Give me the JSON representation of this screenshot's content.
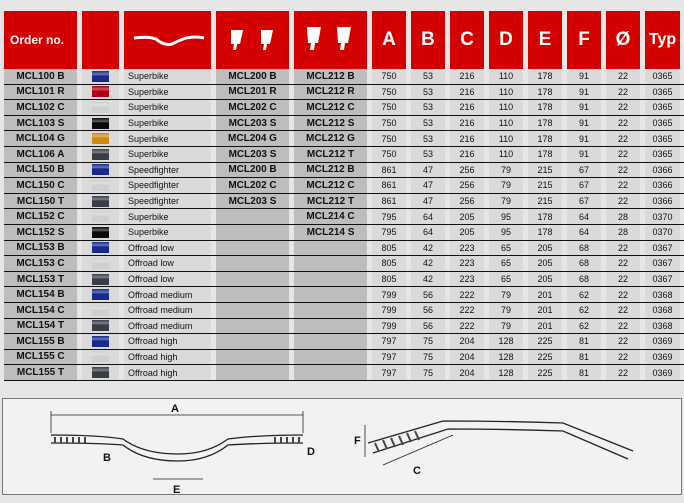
{
  "headers": {
    "order": "Order no.",
    "cols": [
      "A",
      "B",
      "C",
      "D",
      "E",
      "F",
      "Ø",
      "Typ"
    ]
  },
  "colors": {
    "blue": "#1a2a8c",
    "red": "#b00010",
    "silver": "#cfcfcf",
    "black": "#0a0a0a",
    "gold": "#d08a10",
    "titanium": "#3a3d48",
    "header": "#d40000"
  },
  "rows": [
    [
      "MCL100 B",
      "blue",
      "Superbike",
      "MCL200 B",
      "MCL212 B",
      "750",
      "53",
      "216",
      "110",
      "178",
      "91",
      "22",
      "0365"
    ],
    [
      "MCL101 R",
      "red",
      "Superbike",
      "MCL201 R",
      "MCL212 R",
      "750",
      "53",
      "216",
      "110",
      "178",
      "91",
      "22",
      "0365"
    ],
    [
      "MCL102 C",
      "silver",
      "Superbike",
      "MCL202 C",
      "MCL212 C",
      "750",
      "53",
      "216",
      "110",
      "178",
      "91",
      "22",
      "0365"
    ],
    [
      "MCL103 S",
      "black",
      "Superbike",
      "MCL203 S",
      "MCL212 S",
      "750",
      "53",
      "216",
      "110",
      "178",
      "91",
      "22",
      "0365"
    ],
    [
      "MCL104 G",
      "gold",
      "Superbike",
      "MCL204 G",
      "MCL212 G",
      "750",
      "53",
      "216",
      "110",
      "178",
      "91",
      "22",
      "0365"
    ],
    [
      "MCL106 A",
      "titanium",
      "Superbike",
      "MCL203 S",
      "MCL212 T",
      "750",
      "53",
      "216",
      "110",
      "178",
      "91",
      "22",
      "0365"
    ],
    [
      "MCL150 B",
      "blue",
      "Speedfighter",
      "MCL200 B",
      "MCL212 B",
      "861",
      "47",
      "256",
      "79",
      "215",
      "67",
      "22",
      "0366"
    ],
    [
      "MCL150 C",
      "silver",
      "Speedfighter",
      "MCL202 C",
      "MCL212 C",
      "861",
      "47",
      "256",
      "79",
      "215",
      "67",
      "22",
      "0366"
    ],
    [
      "MCL150 T",
      "titanium",
      "Speedfighter",
      "MCL203 S",
      "MCL212 T",
      "861",
      "47",
      "256",
      "79",
      "215",
      "67",
      "22",
      "0366"
    ],
    [
      "MCL152 C",
      "silver",
      "Superbike",
      "",
      "MCL214 C",
      "795",
      "64",
      "205",
      "95",
      "178",
      "64",
      "28",
      "0370"
    ],
    [
      "MCL152 S",
      "black",
      "Superbike",
      "",
      "MCL214 S",
      "795",
      "64",
      "205",
      "95",
      "178",
      "64",
      "28",
      "0370"
    ],
    [
      "MCL153 B",
      "blue",
      "Offroad low",
      "",
      "",
      "805",
      "42",
      "223",
      "65",
      "205",
      "68",
      "22",
      "0367"
    ],
    [
      "MCL153 C",
      "silver",
      "Offroad low",
      "",
      "",
      "805",
      "42",
      "223",
      "65",
      "205",
      "68",
      "22",
      "0367"
    ],
    [
      "MCL153 T",
      "titanium",
      "Offroad low",
      "",
      "",
      "805",
      "42",
      "223",
      "65",
      "205",
      "68",
      "22",
      "0367"
    ],
    [
      "MCL154 B",
      "blue",
      "Offroad medium",
      "",
      "",
      "799",
      "56",
      "222",
      "79",
      "201",
      "62",
      "22",
      "0368"
    ],
    [
      "MCL154 C",
      "silver",
      "Offroad medium",
      "",
      "",
      "799",
      "56",
      "222",
      "79",
      "201",
      "62",
      "22",
      "0368"
    ],
    [
      "MCL154 T",
      "titanium",
      "Offroad medium",
      "",
      "",
      "799",
      "56",
      "222",
      "79",
      "201",
      "62",
      "22",
      "0368"
    ],
    [
      "MCL155 B",
      "blue",
      "Offroad high",
      "",
      "",
      "797",
      "75",
      "204",
      "128",
      "225",
      "81",
      "22",
      "0369"
    ],
    [
      "MCL155 C",
      "silver",
      "Offroad high",
      "",
      "",
      "797",
      "75",
      "204",
      "128",
      "225",
      "81",
      "22",
      "0369"
    ],
    [
      "MCL155 T",
      "titanium",
      "Offroad high",
      "",
      "",
      "797",
      "75",
      "204",
      "128",
      "225",
      "81",
      "22",
      "0369"
    ]
  ],
  "diagram": {
    "labels": [
      "A",
      "B",
      "C",
      "D",
      "E",
      "F"
    ]
  }
}
